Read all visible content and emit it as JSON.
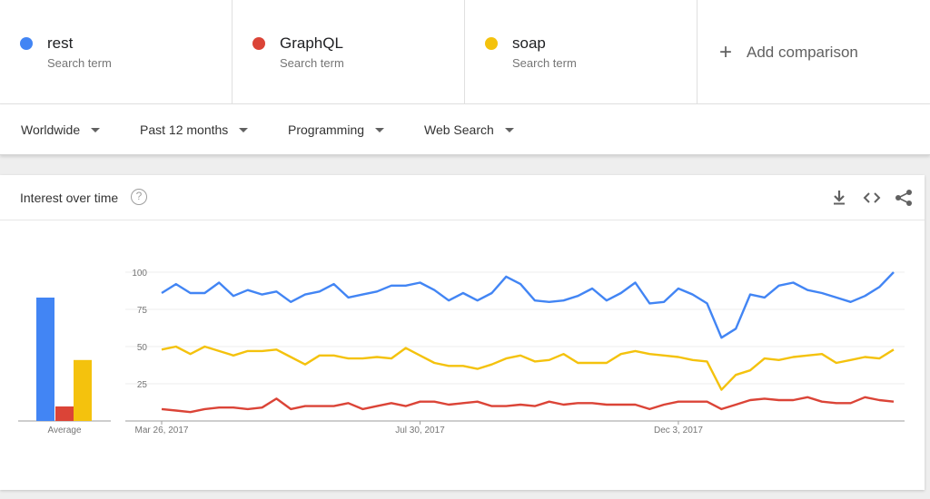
{
  "terms": [
    {
      "name": "rest",
      "sub": "Search term",
      "color": "#4285f4"
    },
    {
      "name": "GraphQL",
      "sub": "Search term",
      "color": "#db4437"
    },
    {
      "name": "soap",
      "sub": "Search term",
      "color": "#f4c20d"
    }
  ],
  "add_comparison": {
    "icon": "plus-icon",
    "label": "Add comparison"
  },
  "filters": {
    "region": "Worldwide",
    "time": "Past 12 months",
    "category": "Programming",
    "search_type": "Web Search"
  },
  "card": {
    "title": "Interest over time",
    "help_icon": "help-circle-icon",
    "tools": [
      "download-icon",
      "embed-code-icon",
      "share-icon"
    ]
  },
  "chart_data": [
    {
      "type": "bar",
      "categories": [
        "rest",
        "GraphQL",
        "soap"
      ],
      "values": [
        85,
        10,
        42
      ],
      "colors": [
        "#4285f4",
        "#db4437",
        "#f4c20d"
      ],
      "xlabel": "Average",
      "ylim": [
        0,
        100
      ]
    },
    {
      "type": "line",
      "x_labels": [
        "Mar 26, 2017",
        "Jul 30, 2017",
        "Dec 3, 2017"
      ],
      "x_label_index": [
        0,
        18,
        36
      ],
      "y_ticks": [
        25,
        50,
        75,
        100
      ],
      "ylim": [
        0,
        100
      ],
      "grid": true,
      "series": [
        {
          "name": "rest",
          "color": "#4285f4",
          "values": [
            86,
            92,
            86,
            86,
            93,
            84,
            88,
            85,
            87,
            80,
            85,
            87,
            92,
            83,
            85,
            87,
            91,
            91,
            93,
            88,
            81,
            86,
            81,
            86,
            97,
            92,
            81,
            80,
            81,
            84,
            89,
            81,
            86,
            93,
            79,
            80,
            89,
            85,
            79,
            56,
            62,
            85,
            83,
            91,
            93,
            88,
            86,
            83,
            80,
            84,
            90,
            100
          ]
        },
        {
          "name": "GraphQL",
          "color": "#db4437",
          "values": [
            8,
            7,
            6,
            8,
            9,
            9,
            8,
            9,
            15,
            8,
            10,
            10,
            10,
            12,
            8,
            10,
            12,
            10,
            13,
            13,
            11,
            12,
            13,
            10,
            10,
            11,
            10,
            13,
            11,
            12,
            12,
            11,
            11,
            11,
            8,
            11,
            13,
            13,
            13,
            8,
            11,
            14,
            15,
            14,
            14,
            16,
            13,
            12,
            12,
            16,
            14,
            13
          ]
        },
        {
          "name": "soap",
          "color": "#f4c20d",
          "values": [
            48,
            50,
            45,
            50,
            47,
            44,
            47,
            47,
            48,
            43,
            38,
            44,
            44,
            42,
            42,
            43,
            42,
            49,
            44,
            39,
            37,
            37,
            35,
            38,
            42,
            44,
            40,
            41,
            45,
            39,
            39,
            39,
            45,
            47,
            45,
            44,
            43,
            41,
            40,
            21,
            31,
            34,
            42,
            41,
            43,
            44,
            45,
            39,
            41,
            43,
            42,
            48
          ]
        }
      ]
    }
  ]
}
